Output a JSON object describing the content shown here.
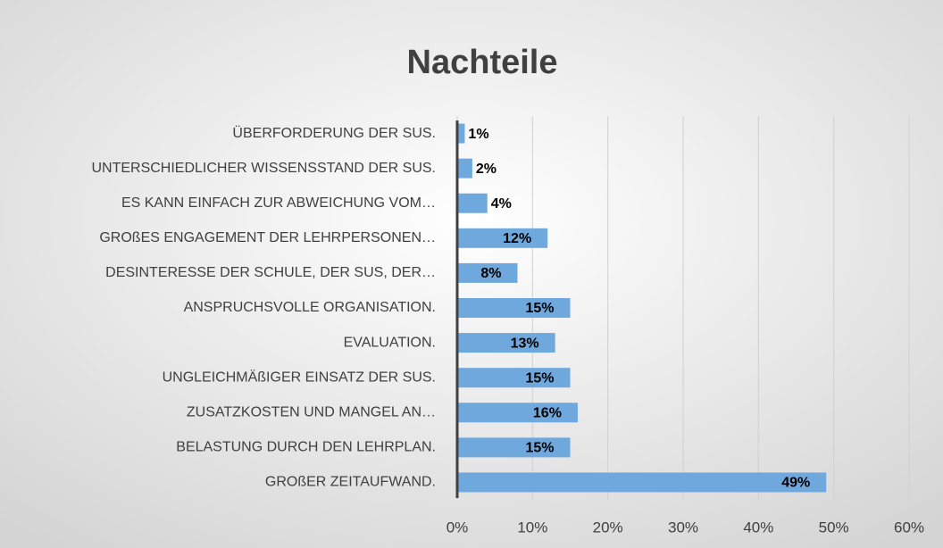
{
  "chart_data": {
    "type": "bar",
    "orientation": "horizontal",
    "title": "Nachteile",
    "categories": [
      "ÜBERFORDERUNG DER SUS.",
      "UNTERSCHIEDLICHER WISSENSSTAND DER SUS.",
      "ES KANN EINFACH ZUR ABWEICHUNG VOM…",
      "GROßES ENGAGEMENT DER LEHRPERSONEN…",
      "DESINTERESSE DER SCHULE, DER SUS, DER…",
      "ANSPRUCHSVOLLE ORGANISATION.",
      "EVALUATION.",
      "UNGLEICHMÄßIGER EINSATZ DER SUS.",
      "ZUSATZKOSTEN UND MANGEL AN…",
      "BELASTUNG DURCH DEN LEHRPLAN.",
      "GROßER ZEITAUFWAND."
    ],
    "values": [
      1,
      2,
      4,
      12,
      8,
      15,
      13,
      15,
      16,
      15,
      49
    ],
    "value_labels": [
      "1%",
      "2%",
      "4%",
      "12%",
      "8%",
      "15%",
      "13%",
      "15%",
      "16%",
      "15%",
      "49%"
    ],
    "color": "#6fa8dc",
    "xlim": [
      0,
      60
    ],
    "xticks": [
      {
        "value": 0,
        "label": "0%"
      },
      {
        "value": 10,
        "label": "10%"
      },
      {
        "value": 20,
        "label": "20%"
      },
      {
        "value": 30,
        "label": "30%"
      },
      {
        "value": 40,
        "label": "40%"
      },
      {
        "value": 50,
        "label": "50%"
      },
      {
        "value": 60,
        "label": "60%"
      }
    ],
    "grid": true
  }
}
